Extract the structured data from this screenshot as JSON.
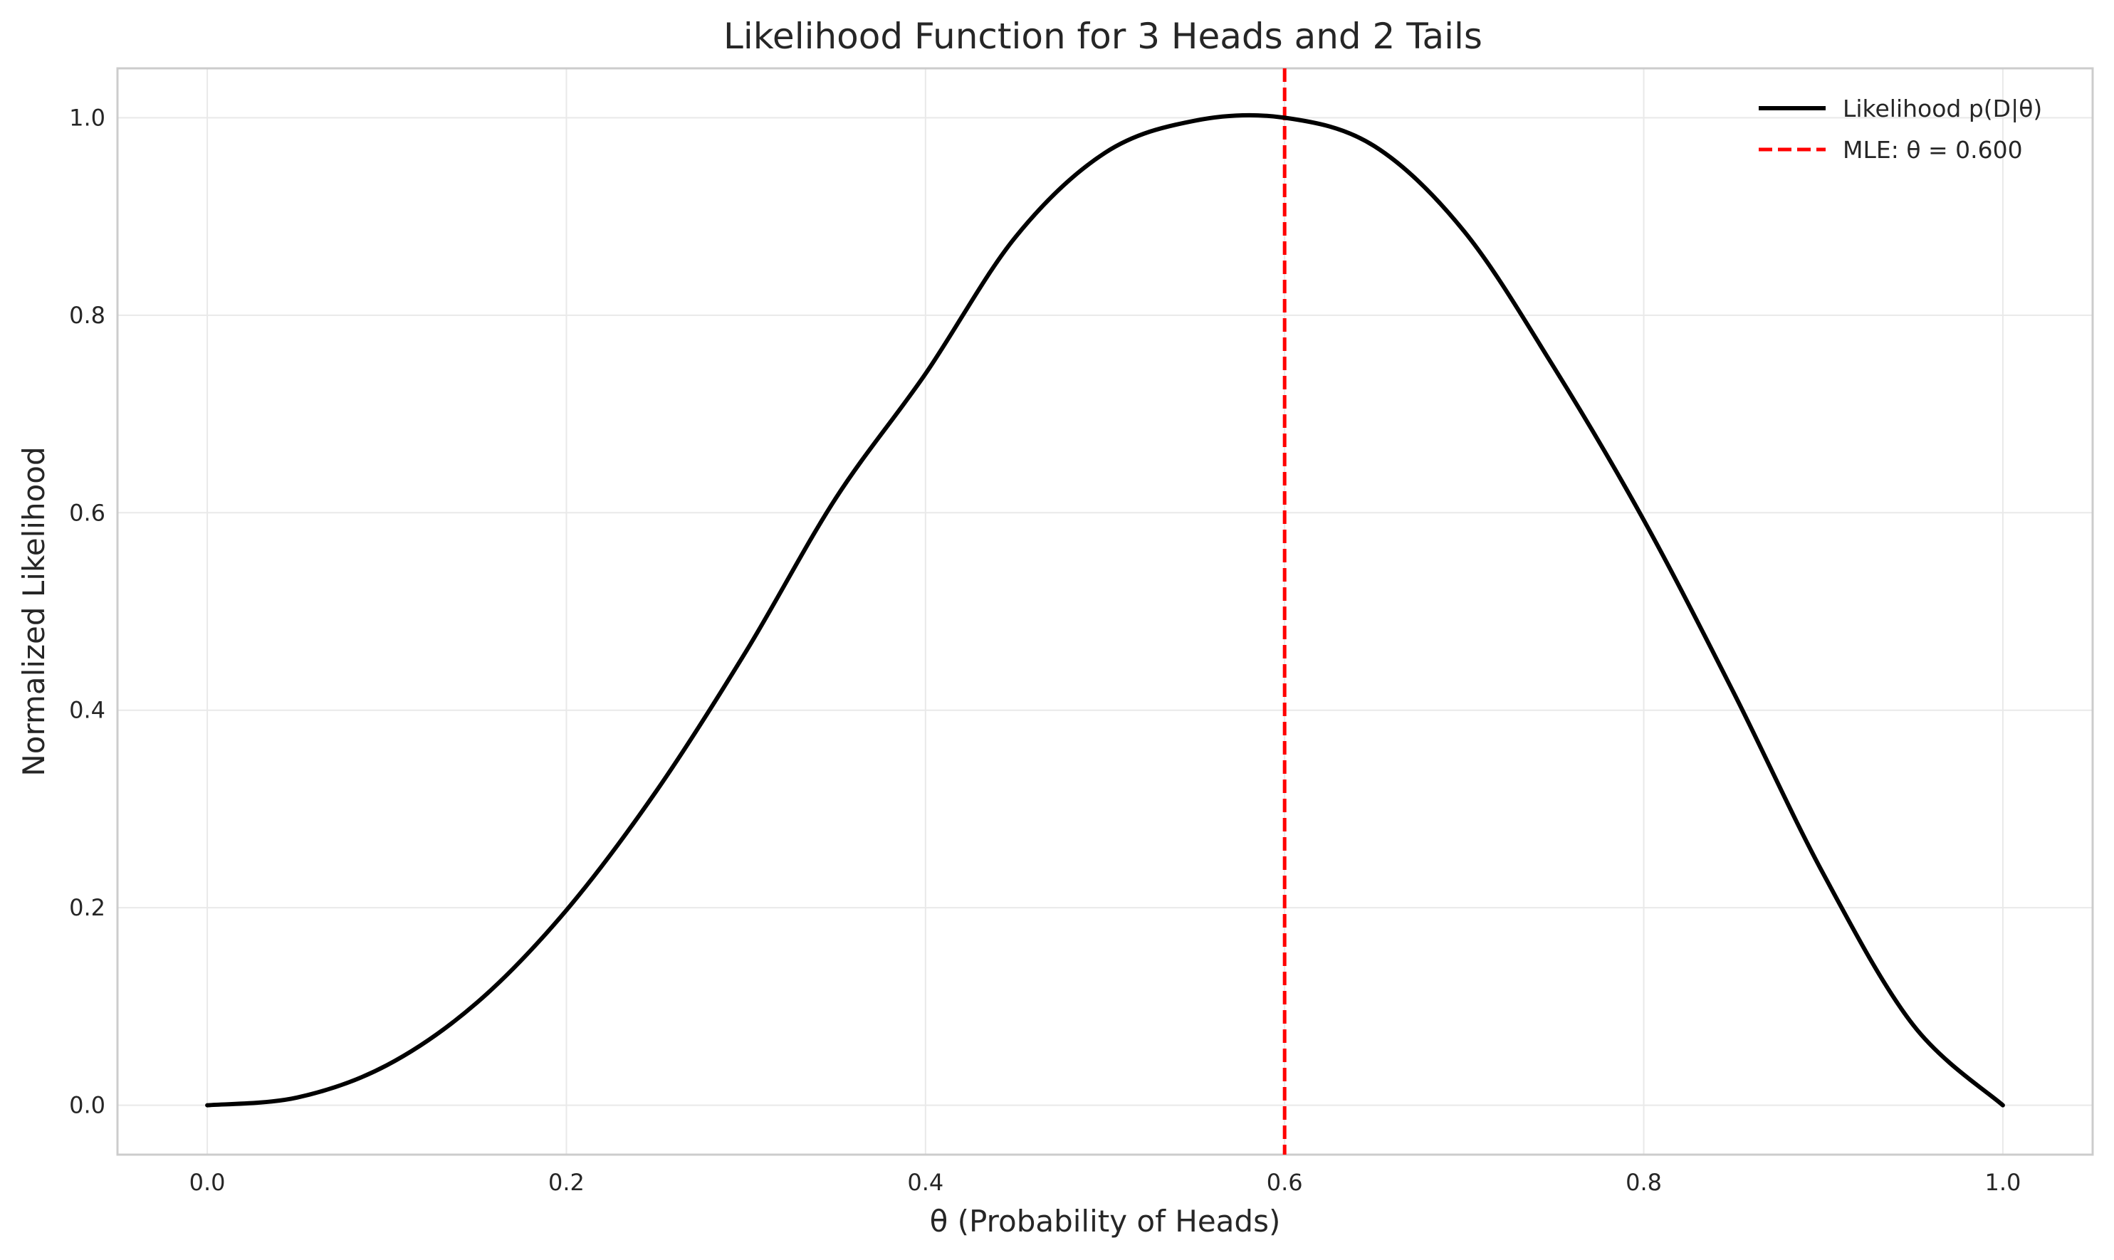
{
  "chart_data": {
    "type": "line",
    "title": "Likelihood Function for 3 Heads and 2 Tails",
    "xlabel": "θ (Probability of Heads)",
    "ylabel": "Normalized Likelihood",
    "xlim": [
      -0.05,
      1.05
    ],
    "ylim": [
      -0.05,
      1.05
    ],
    "xticks": [
      0.0,
      0.2,
      0.4,
      0.6,
      0.8,
      1.0
    ],
    "xtick_labels": [
      "0.0",
      "0.2",
      "0.4",
      "0.6",
      "0.8",
      "1.0"
    ],
    "yticks": [
      0.0,
      0.2,
      0.4,
      0.6,
      0.8,
      1.0
    ],
    "ytick_labels": [
      "0.0",
      "0.2",
      "0.4",
      "0.6",
      "0.8",
      "1.0"
    ],
    "grid": true,
    "legend_position": "top-right",
    "series": [
      {
        "name": "Likelihood p(D|θ)",
        "style": "solid",
        "color": "#000000",
        "x": [
          0.0,
          0.05,
          0.1,
          0.15,
          0.2,
          0.25,
          0.3,
          0.35,
          0.4,
          0.45,
          0.5,
          0.55,
          0.6,
          0.65,
          0.7,
          0.75,
          0.8,
          0.85,
          0.9,
          0.95,
          1.0
        ],
        "values": [
          0.0,
          0.0078,
          0.0405,
          0.1036,
          0.1975,
          0.3179,
          0.4594,
          0.6146,
          0.7407,
          0.8789,
          0.9645,
          0.997,
          1.0,
          0.9712,
          0.8849,
          0.7472,
          0.5926,
          0.4181,
          0.2344,
          0.0814,
          0.0
        ]
      }
    ],
    "annotations": [
      {
        "name": "MLE: θ = 0.600",
        "type": "vline",
        "x": 0.6,
        "style": "dashed",
        "color": "#ff0000"
      }
    ]
  }
}
